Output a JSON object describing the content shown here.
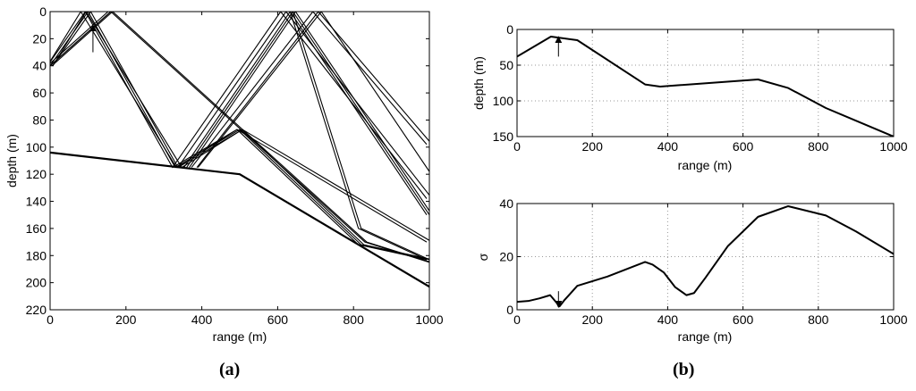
{
  "chart_data": [
    {
      "id": "a",
      "type": "line",
      "panel_label": "(a)",
      "xlabel": "range (m)",
      "ylabel": "depth (m)",
      "xlim": [
        0,
        1000
      ],
      "ylim": [
        0,
        220
      ],
      "y_inverted": true,
      "xticks": [
        0,
        200,
        400,
        600,
        800,
        1000
      ],
      "yticks": [
        0,
        20,
        40,
        60,
        80,
        100,
        120,
        140,
        160,
        180,
        200,
        220
      ],
      "grid": false,
      "annotations": [
        {
          "type": "arrow",
          "direction": "up",
          "x": 113,
          "y_tail": 30,
          "y_head": 12
        }
      ],
      "bottom_profile": {
        "x": [
          0,
          500,
          1000
        ],
        "y": [
          104,
          120,
          203
        ]
      },
      "ray_bundles": [
        {
          "x": [
            0,
            88,
            340,
            500,
            1000
          ],
          "y": [
            40,
            0,
            115,
            87,
            170
          ],
          "offsets": [
            -3,
            3
          ]
        },
        {
          "x": [
            0,
            100,
            330,
            500,
            820,
            1000
          ],
          "y": [
            40,
            0,
            115,
            87,
            172,
            183
          ],
          "offsets": [
            -3,
            0,
            3
          ]
        },
        {
          "x": [
            0,
            160,
            640,
            820,
            1000
          ],
          "y": [
            40,
            0,
            0,
            160,
            183
          ],
          "offsets": [
            -3,
            0
          ]
        },
        {
          "x": [
            0,
            160,
            830,
            1000
          ],
          "y": [
            40,
            0,
            170,
            185
          ],
          "offsets": [
            0,
            2
          ]
        },
        {
          "x": [
            360,
            640,
            1000
          ],
          "y": [
            115,
            0,
            150
          ],
          "offsets": [
            -3,
            0,
            3
          ]
        },
        {
          "x": [
            330,
            615,
            1000
          ],
          "y": [
            115,
            0,
            138
          ],
          "offsets": [
            -3,
            3
          ]
        },
        {
          "x": [
            380,
            700,
            1000
          ],
          "y": [
            115,
            0,
            98
          ],
          "offsets": [
            -3,
            3
          ]
        },
        {
          "x": [
            390,
            715,
            1000
          ],
          "y": [
            115,
            0,
            118
          ],
          "offsets": [
            0
          ]
        }
      ]
    },
    {
      "id": "b-top",
      "type": "line",
      "panel_label": "(b)",
      "xlabel": "range (m)",
      "ylabel": "depth (m)",
      "xlim": [
        0,
        1000
      ],
      "ylim": [
        0,
        150
      ],
      "y_inverted": true,
      "xticks": [
        0,
        200,
        400,
        600,
        800,
        1000
      ],
      "yticks": [
        0,
        50,
        100,
        150
      ],
      "grid": true,
      "annotations": [
        {
          "type": "arrow",
          "direction": "up",
          "x": 110,
          "y_tail": 38,
          "y_head": 14
        }
      ],
      "x": [
        0,
        90,
        160,
        340,
        380,
        640,
        720,
        820,
        1000
      ],
      "y": [
        38,
        10,
        15,
        77,
        80,
        70,
        82,
        110,
        150
      ]
    },
    {
      "id": "b-bottom",
      "type": "line",
      "xlabel": "range (m)",
      "ylabel": "σ",
      "xlim": [
        0,
        1000
      ],
      "ylim": [
        0,
        40
      ],
      "y_inverted": false,
      "xticks": [
        0,
        200,
        400,
        600,
        800,
        1000
      ],
      "yticks": [
        0,
        20,
        40
      ],
      "grid": true,
      "annotations": [
        {
          "type": "arrow",
          "direction": "down",
          "x": 110,
          "y_tail": 7,
          "y_head": 2
        }
      ],
      "x": [
        0,
        30,
        60,
        88,
        100,
        113,
        125,
        160,
        240,
        340,
        360,
        390,
        420,
        450,
        470,
        500,
        560,
        640,
        720,
        820,
        900,
        1000
      ],
      "y": [
        3,
        3.3,
        4.3,
        5.5,
        3.5,
        1.3,
        3.5,
        9,
        12.5,
        18,
        17,
        14,
        8.5,
        5.5,
        6.3,
        12,
        24,
        35,
        39,
        35.5,
        29.5,
        21
      ]
    }
  ]
}
